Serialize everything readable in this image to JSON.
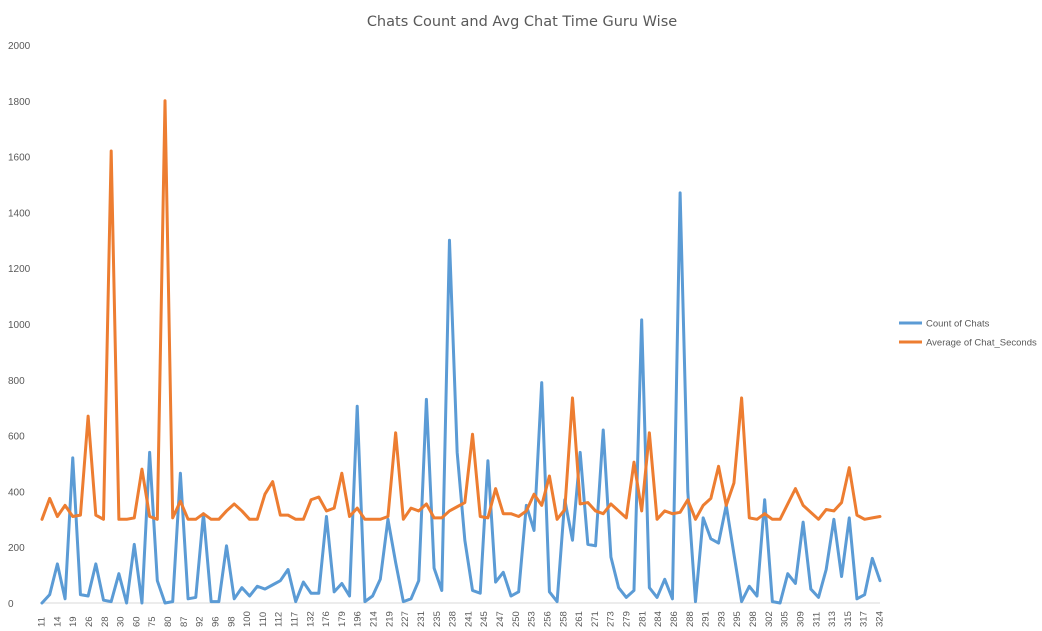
{
  "chart_data": {
    "type": "line",
    "title": "Chats Count and Avg Chat Time Guru Wise",
    "xlabel": "",
    "ylabel": "",
    "ylim": [
      0,
      2000
    ],
    "yticks": [
      0,
      200,
      400,
      600,
      800,
      1000,
      1200,
      1400,
      1600,
      1800,
      2000
    ],
    "grid": false,
    "legend_position": "right",
    "x_tick_labels": [
      "11",
      "14",
      "19",
      "26",
      "28",
      "30",
      "60",
      "75",
      "80",
      "87",
      "92",
      "96",
      "98",
      "100",
      "110",
      "112",
      "117",
      "132",
      "176",
      "179",
      "196",
      "214",
      "219",
      "227",
      "231",
      "235",
      "238",
      "241",
      "245",
      "247",
      "250",
      "253",
      "256",
      "258",
      "261",
      "271",
      "273",
      "279",
      "281",
      "284",
      "286",
      "288",
      "291",
      "293",
      "295",
      "298",
      "302",
      "305",
      "309",
      "311",
      "313",
      "315",
      "317",
      "324"
    ],
    "series": [
      {
        "name": "Count of Chats",
        "color": "#5B9BD5",
        "values": [
          0,
          30,
          140,
          15,
          520,
          30,
          25,
          140,
          10,
          5,
          105,
          0,
          210,
          0,
          540,
          80,
          0,
          5,
          465,
          15,
          20,
          320,
          5,
          5,
          205,
          15,
          55,
          25,
          60,
          50,
          65,
          80,
          120,
          5,
          75,
          35,
          35,
          310,
          40,
          70,
          25,
          705,
          5,
          25,
          85,
          300,
          145,
          5,
          15,
          80,
          730,
          125,
          45,
          1300,
          540,
          225,
          45,
          35,
          510,
          75,
          110,
          25,
          40,
          350,
          260,
          790,
          40,
          5,
          370,
          225,
          540,
          210,
          205,
          620,
          165,
          55,
          20,
          45,
          1015,
          55,
          20,
          85,
          15,
          1470,
          400,
          5,
          305,
          230,
          215,
          350,
          175,
          5,
          60,
          25,
          370,
          5,
          0,
          105,
          70,
          290,
          50,
          20,
          120,
          300,
          95,
          305,
          15,
          30,
          160,
          80
        ]
      },
      {
        "name": "Average of Chat_Seconds",
        "color": "#ED7D31",
        "values": [
          300,
          375,
          310,
          350,
          310,
          315,
          670,
          315,
          300,
          1620,
          300,
          300,
          305,
          480,
          310,
          300,
          1800,
          305,
          365,
          300,
          300,
          320,
          300,
          300,
          330,
          355,
          330,
          300,
          300,
          390,
          435,
          315,
          315,
          300,
          300,
          370,
          380,
          330,
          340,
          465,
          310,
          340,
          300,
          300,
          300,
          310,
          610,
          300,
          340,
          330,
          355,
          305,
          305,
          330,
          345,
          360,
          605,
          310,
          305,
          410,
          320,
          320,
          310,
          330,
          390,
          350,
          455,
          300,
          335,
          735,
          355,
          360,
          330,
          320,
          355,
          330,
          305,
          505,
          330,
          610,
          300,
          330,
          320,
          325,
          370,
          300,
          350,
          375,
          490,
          350,
          430,
          735,
          305,
          300,
          320,
          300,
          300,
          355,
          410,
          350,
          325,
          300,
          335,
          330,
          360,
          485,
          315,
          300,
          305,
          310
        ]
      }
    ]
  }
}
